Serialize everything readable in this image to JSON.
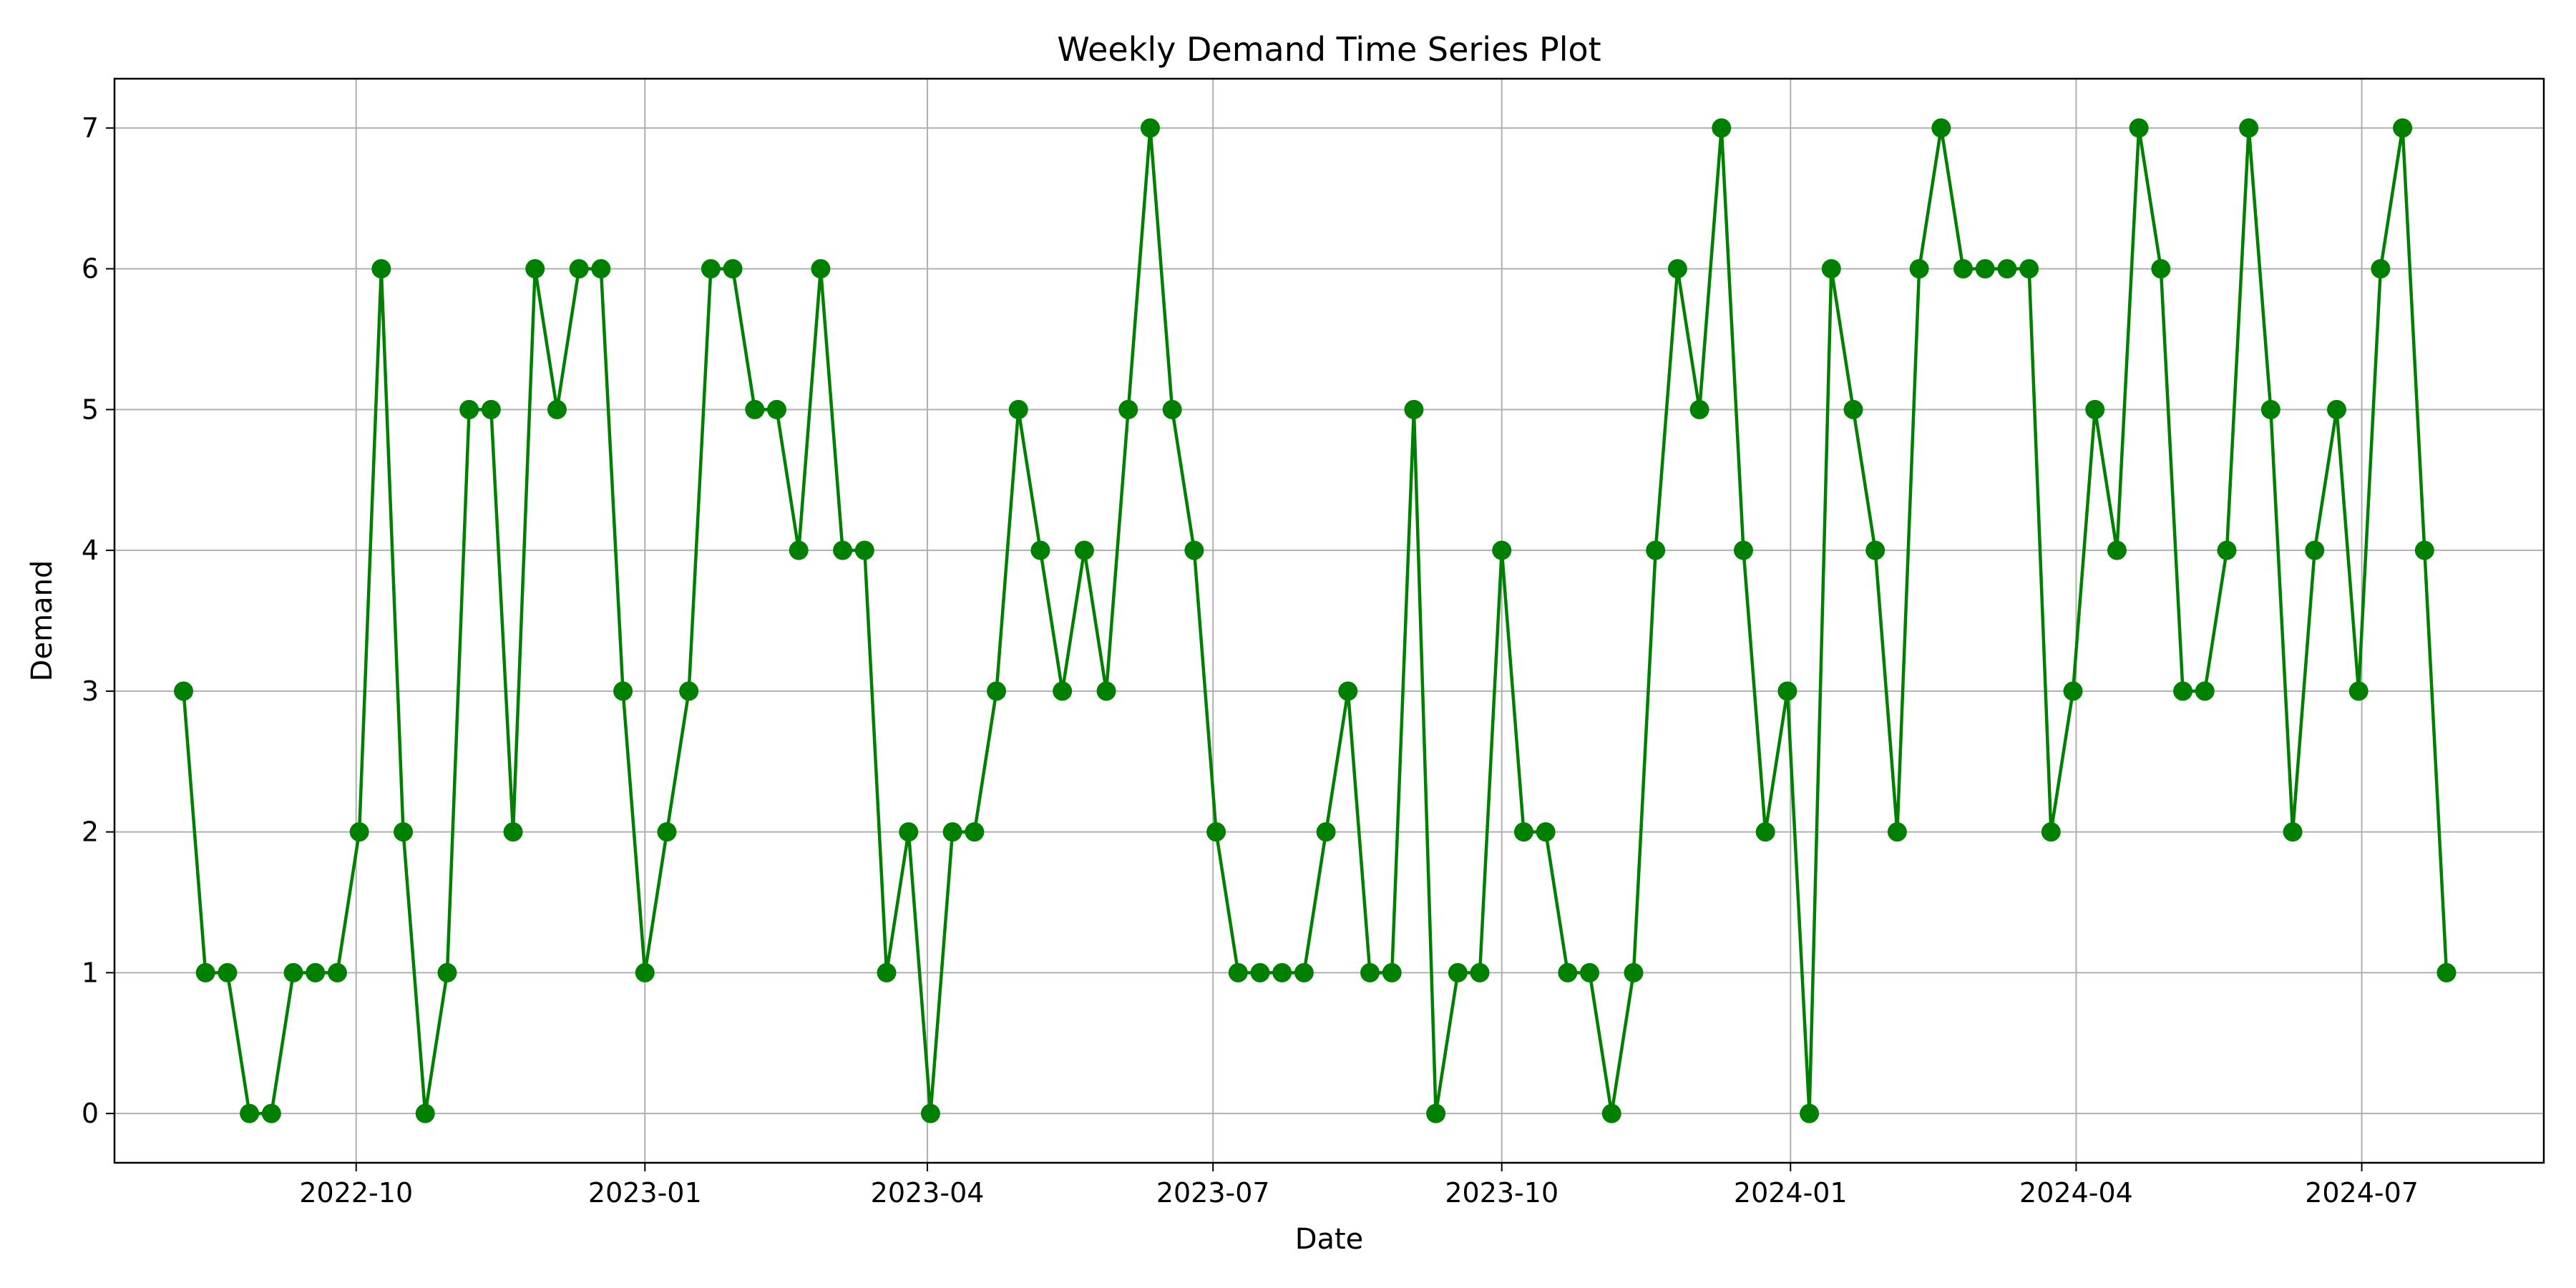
{
  "chart_data": {
    "type": "line",
    "title": "Weekly Demand Time Series Plot",
    "xlabel": "Date",
    "ylabel": "Demand",
    "x_start": "2022-08-07",
    "x_interval": "weekly",
    "xlim": [
      "2022-07-16",
      "2024-08-28"
    ],
    "ylim": [
      -0.35,
      7.35
    ],
    "x_ticks": [
      "2022-10-01",
      "2023-01-01",
      "2023-04-01",
      "2023-07-01",
      "2023-10-01",
      "2024-01-01",
      "2024-04-01",
      "2024-07-01"
    ],
    "x_tick_labels": [
      "2022-10",
      "2023-01",
      "2023-04",
      "2023-07",
      "2023-10",
      "2024-01",
      "2024-04",
      "2024-07"
    ],
    "y_ticks": [
      0,
      1,
      2,
      3,
      4,
      5,
      6,
      7
    ],
    "grid": true,
    "series": [
      {
        "color": "#008000",
        "marker": "circle",
        "values": [
          3,
          1,
          1,
          0,
          0,
          1,
          1,
          1,
          2,
          6,
          2,
          0,
          1,
          5,
          5,
          2,
          6,
          5,
          6,
          6,
          3,
          1,
          2,
          3,
          6,
          6,
          5,
          5,
          4,
          6,
          4,
          4,
          1,
          2,
          0,
          2,
          2,
          3,
          5,
          4,
          3,
          4,
          3,
          5,
          7,
          5,
          4,
          2,
          1,
          1,
          1,
          1,
          2,
          3,
          1,
          1,
          5,
          0,
          1,
          1,
          4,
          2,
          2,
          1,
          1,
          0,
          1,
          4,
          6,
          5,
          7,
          4,
          2,
          3,
          0,
          6,
          5,
          4,
          2,
          6,
          7,
          6,
          6,
          6,
          6,
          2,
          3,
          5,
          4,
          7,
          6,
          3,
          3,
          4,
          7,
          5,
          2,
          4,
          5,
          3,
          6,
          7,
          4,
          1
        ]
      }
    ]
  }
}
